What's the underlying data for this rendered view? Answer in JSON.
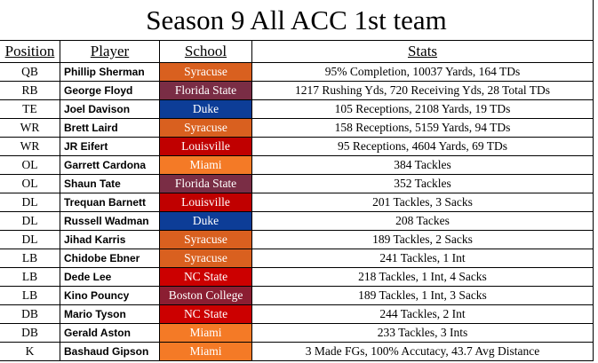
{
  "title": "Season 9 All ACC 1st team",
  "table": {
    "headers": [
      "Position",
      "Player",
      "School",
      "Stats"
    ],
    "rows": [
      {
        "position": "QB",
        "player": "Phillip Sherman",
        "school": "Syracuse",
        "school_color": "#d9601f",
        "stats": "95% Completion, 10037 Yards, 164 TDs"
      },
      {
        "position": "RB",
        "player": "George Floyd",
        "school": "Florida State",
        "school_color": "#7a2d45",
        "stats": "1217 Rushing Yds, 720 Receiving Yds, 28 Total TDs"
      },
      {
        "position": "TE",
        "player": "Joel Davison",
        "school": "Duke",
        "school_color": "#0d3d97",
        "stats": "105 Receptions, 2108 Yards, 19 TDs"
      },
      {
        "position": "WR",
        "player": "Brett Laird",
        "school": "Syracuse",
        "school_color": "#d9601f",
        "stats": "158 Receptions, 5159 Yards, 94 TDs"
      },
      {
        "position": "WR",
        "player": "JR Eifert",
        "school": "Louisville",
        "school_color": "#c00000",
        "stats": "95 Receptions, 4604 Yards, 69 TDs"
      },
      {
        "position": "OL",
        "player": "Garrett Cardona",
        "school": "Miami",
        "school_color": "#f47a26",
        "stats": "384 Tackles"
      },
      {
        "position": "OL",
        "player": "Shaun Tate",
        "school": "Florida State",
        "school_color": "#7a2d45",
        "stats": "352 Tackles"
      },
      {
        "position": "DL",
        "player": "Trequan Barnett",
        "school": "Louisville",
        "school_color": "#c00000",
        "stats": "201 Tackles, 3 Sacks"
      },
      {
        "position": "DL",
        "player": "Russell Wadman",
        "school": "Duke",
        "school_color": "#0d3d97",
        "stats": "208 Tackes"
      },
      {
        "position": "DL",
        "player": "Jihad Karris",
        "school": "Syracuse",
        "school_color": "#d9601f",
        "stats": "189 Tackles, 2 Sacks"
      },
      {
        "position": "LB",
        "player": "Chidobe Ebner",
        "school": "Syracuse",
        "school_color": "#d9601f",
        "stats": "241 Tackles, 1 Int"
      },
      {
        "position": "LB",
        "player": "Dede Lee",
        "school": "NC State",
        "school_color": "#cc0000",
        "stats": "218 Tackles, 1 Int, 4 Sacks"
      },
      {
        "position": "LB",
        "player": "Kino Pouncy",
        "school": "Boston College",
        "school_color": "#8b1e32",
        "stats": "189 Tackles, 1 Int, 3 Sacks"
      },
      {
        "position": "DB",
        "player": "Mario Tyson",
        "school": "NC State",
        "school_color": "#cc0000",
        "stats": "244 Tackles, 2 Int"
      },
      {
        "position": "DB",
        "player": "Gerald Aston",
        "school": "Miami",
        "school_color": "#f47a26",
        "stats": "233 Tackles, 3 Ints"
      },
      {
        "position": "K",
        "player": "Bashaud Gipson",
        "school": "Miami",
        "school_color": "#f47a26",
        "stats": "3 Made FGs, 100% Accutacy, 43.7 Avg Distance"
      }
    ]
  }
}
